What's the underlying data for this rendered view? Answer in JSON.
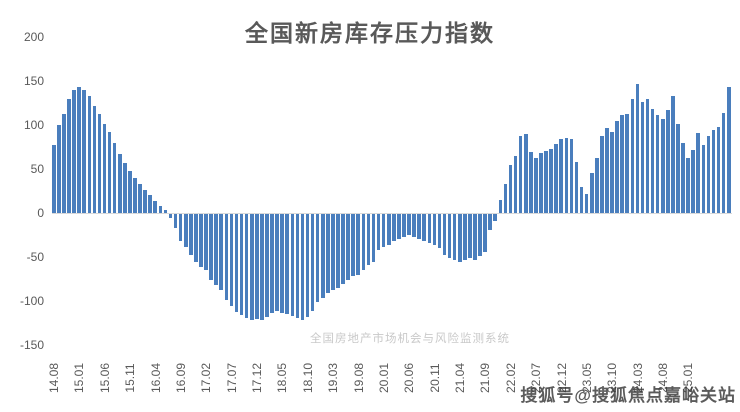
{
  "title": "全国新房库存压力指数",
  "watermark_center": "全国房地产市场机会与风险监测系统",
  "watermark_bottom_right": "搜狐号@搜狐焦点嘉峪关站",
  "colors": {
    "bar": "#4a7ebd",
    "axis_text": "#595959",
    "title_text": "#595959",
    "watermark_center": "#c9c9c9",
    "watermark_sohu": "#373737",
    "zero_line": "#d9d9d9",
    "background": "#ffffff"
  },
  "y_axis": {
    "tick_labels": [
      "200",
      "150",
      "100",
      "50",
      "0",
      "-50",
      "-100",
      "-150"
    ]
  },
  "chart_data": {
    "type": "bar",
    "title": "全国新房库存压力指数",
    "xlabel": "",
    "ylabel": "",
    "ylim": [
      -150,
      200
    ],
    "ytick_interval": 50,
    "grid": false,
    "legend": false,
    "x_start": "2014.08",
    "x_frequency": "monthly",
    "tick_every_n_bars": 5,
    "tick_labels": [
      "14.08",
      "15.01",
      "15.06",
      "15.11",
      "16.04",
      "16.09",
      "17.02",
      "17.07",
      "17.12",
      "18.05",
      "18.10",
      "19.03",
      "19.08",
      "20.01",
      "20.06",
      "20.11",
      "21.04",
      "21.09",
      "22.02",
      "22.07",
      "22.12",
      "23.05",
      "23.10",
      "24.03",
      "24.08",
      "25.01"
    ],
    "values": [
      77,
      100,
      112,
      130,
      140,
      143,
      140,
      133,
      122,
      113,
      101,
      92,
      80,
      67,
      57,
      48,
      40,
      33,
      26,
      20,
      14,
      8,
      3,
      -4,
      -16,
      -31,
      -37,
      -47,
      -54,
      -60,
      -64,
      -75,
      -81,
      -86,
      -98,
      -105,
      -111,
      -115,
      -118,
      -120,
      -119,
      -120,
      -117,
      -112,
      -110,
      -112,
      -114,
      -116,
      -118,
      -120,
      -117,
      -110,
      -100,
      -95,
      -90,
      -86,
      -84,
      -80,
      -75,
      -71,
      -69,
      -64,
      -58,
      -54,
      -41,
      -37,
      -35,
      -31,
      -28,
      -26,
      -24,
      -26,
      -28,
      -31,
      -33,
      -35,
      -39,
      -47,
      -50,
      -52,
      -54,
      -52,
      -50,
      -52,
      -48,
      -43,
      -18,
      -8,
      15,
      33,
      55,
      65,
      88,
      90,
      69,
      62,
      68,
      71,
      73,
      78,
      84,
      85,
      84,
      58,
      29,
      22,
      46,
      63,
      88,
      97,
      92,
      104,
      111,
      112,
      130,
      147,
      126,
      130,
      118,
      111,
      107,
      117,
      133,
      101,
      80,
      63,
      72,
      91,
      77,
      88,
      94,
      98,
      114,
      143
    ]
  }
}
